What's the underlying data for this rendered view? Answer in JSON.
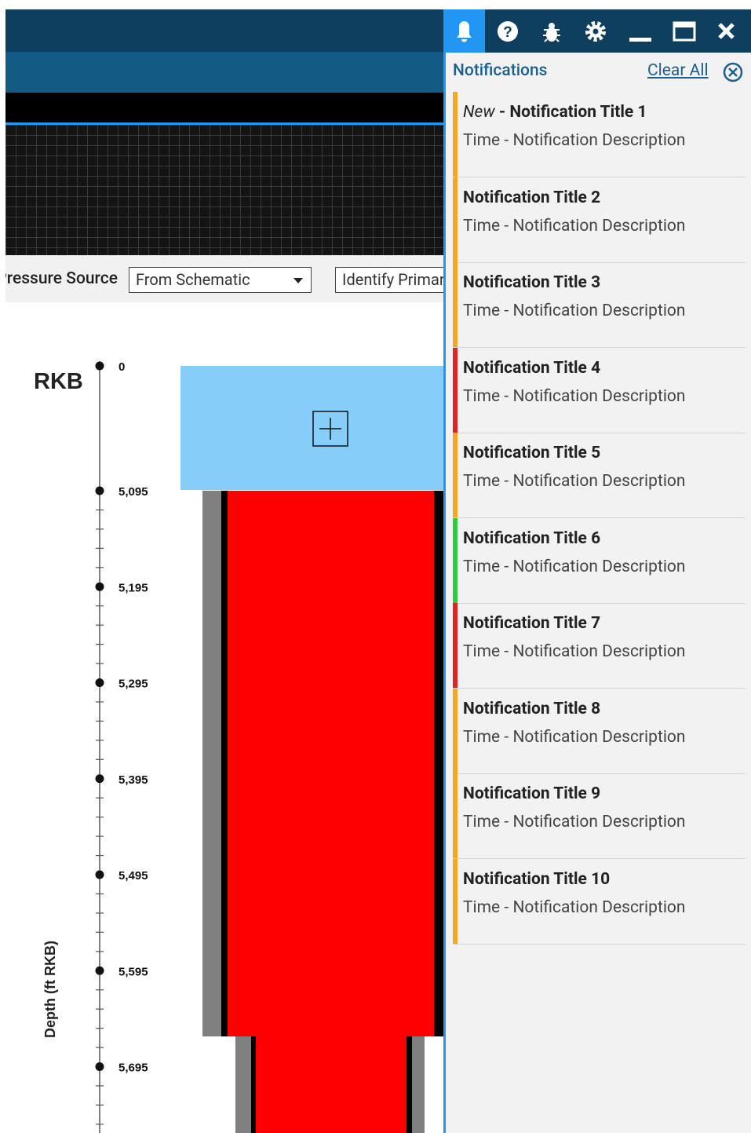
{
  "toolbar": {
    "pressure_source_label": "Pressure Source",
    "pressure_source_value": "From Schematic",
    "identify_button": "Identify Primary"
  },
  "depth_axis": {
    "title": "Depth (ft RKB)",
    "datum": "RKB",
    "ticks": [
      0,
      {
        "value": 5095,
        "label": "5,095"
      },
      {
        "value": 5195,
        "label": "5,195"
      },
      {
        "value": 5295,
        "label": "5,295"
      },
      {
        "value": 5395,
        "label": "5,395"
      },
      {
        "value": 5495,
        "label": "5,495"
      },
      {
        "value": 5595,
        "label": "5,595"
      },
      {
        "value": 5695,
        "label": "5,695"
      }
    ]
  },
  "notifications": {
    "title": "Notifications",
    "clear_all": "Clear All",
    "new_label": "New",
    "separator": " - ",
    "items": [
      {
        "title": "Notification Title 1",
        "time": "Time",
        "description": "Notification Description",
        "color": "#f5a623",
        "new": true
      },
      {
        "title": "Notification Title 2",
        "time": "Time",
        "description": "Notification Description",
        "color": "#f5a623",
        "new": false
      },
      {
        "title": "Notification Title 3",
        "time": "Time",
        "description": "Notification Description",
        "color": "#f5a623",
        "new": false
      },
      {
        "title": "Notification Title 4",
        "time": "Time",
        "description": "Notification Description",
        "color": "#e02424",
        "new": false
      },
      {
        "title": "Notification Title 5",
        "time": "Time",
        "description": "Notification Description",
        "color": "#f5a623",
        "new": false
      },
      {
        "title": "Notification Title 6",
        "time": "Time",
        "description": "Notification Description",
        "color": "#2ecc40",
        "new": false
      },
      {
        "title": "Notification Title 7",
        "time": "Time",
        "description": "Notification Description",
        "color": "#e02424",
        "new": false
      },
      {
        "title": "Notification Title 8",
        "time": "Time",
        "description": "Notification Description",
        "color": "#f5a623",
        "new": false
      },
      {
        "title": "Notification Title 9",
        "time": "Time",
        "description": "Notification Description",
        "color": "#f5a623",
        "new": false
      },
      {
        "title": "Notification Title 10",
        "time": "Time",
        "description": "Notification Description",
        "color": "#f5a623",
        "new": false
      }
    ]
  }
}
